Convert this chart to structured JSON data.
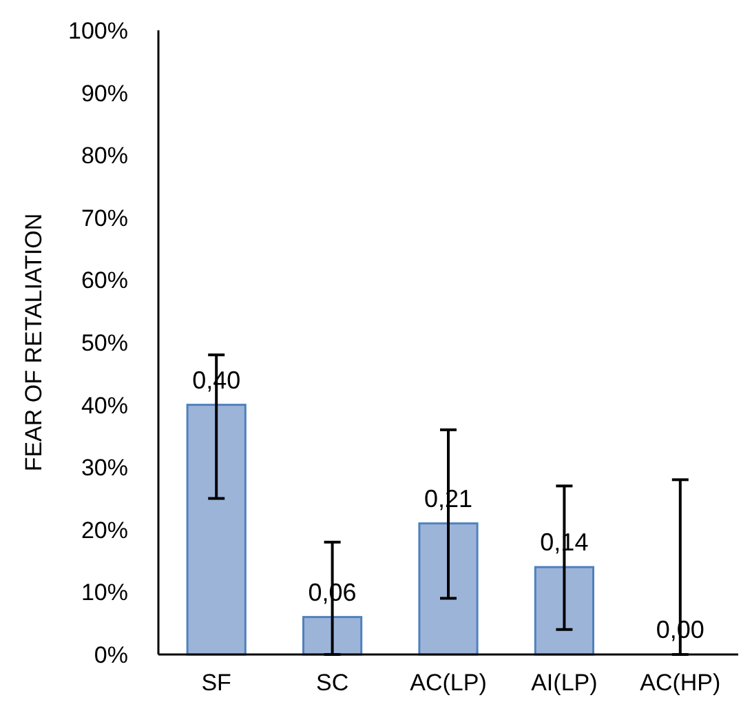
{
  "chart_data": {
    "type": "bar",
    "ylabel": "FEAR OF RETALIATION",
    "categories": [
      "SF",
      "SC",
      "AC(LP)",
      "AI(LP)",
      "AC(HP)"
    ],
    "values": [
      0.4,
      0.06,
      0.21,
      0.14,
      0.0
    ],
    "errors": [
      [
        0.25,
        0.48
      ],
      [
        0,
        0.18
      ],
      [
        0.09,
        0.36
      ],
      [
        0.04,
        0.27
      ],
      [
        0,
        0.28
      ]
    ],
    "value_labels": [
      "0,40",
      "0,06",
      "0,21",
      "0,14",
      "0,00"
    ],
    "color": "#9db4d9",
    "ylim": [
      0,
      1
    ],
    "yticks": [
      {
        "value": 0,
        "label": "0%"
      },
      {
        "value": 0.1,
        "label": "10%"
      },
      {
        "value": 0.2,
        "label": "20%"
      },
      {
        "value": 0.3,
        "label": "30%"
      },
      {
        "value": 0.4,
        "label": "40%"
      },
      {
        "value": 0.5,
        "label": "50%"
      },
      {
        "value": 0.6,
        "label": "60%"
      },
      {
        "value": 0.7,
        "label": "70%"
      },
      {
        "value": 0.8,
        "label": "80%"
      },
      {
        "value": 0.9,
        "label": "90%"
      },
      {
        "value": 1,
        "label": "100%"
      }
    ],
    "grid": false
  }
}
